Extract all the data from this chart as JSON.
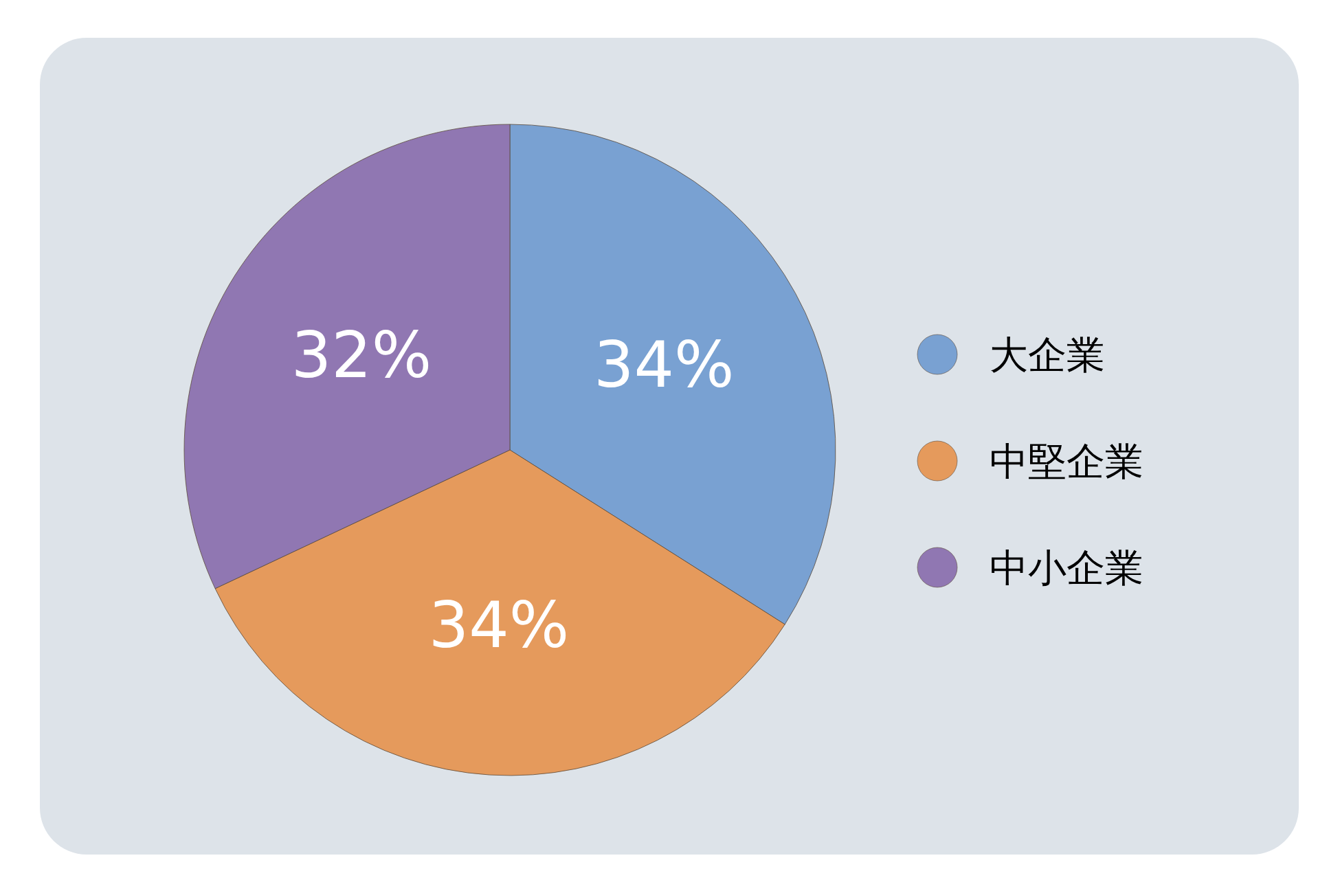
{
  "chart_data": {
    "type": "pie",
    "categories": [
      "大企業",
      "中堅企業",
      "中小企業"
    ],
    "values": [
      34,
      34,
      32
    ],
    "colors": [
      "#79a1d2",
      "#e59a5c",
      "#9077b2"
    ],
    "value_labels": [
      "34%",
      "34%",
      "32%"
    ],
    "legend": "right"
  }
}
